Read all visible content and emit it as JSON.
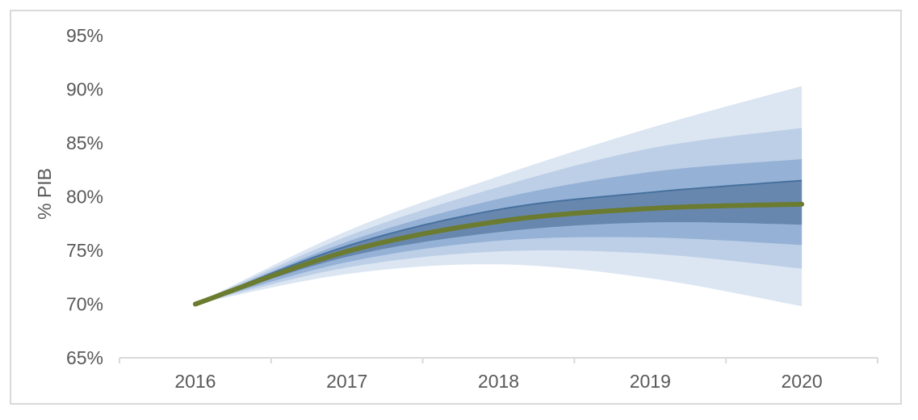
{
  "chart_data": {
    "type": "area",
    "subtype": "fan-chart",
    "title": "",
    "xlabel": "",
    "ylabel": "% PIB",
    "x": [
      2016,
      2017,
      2018,
      2019,
      2020
    ],
    "x_labels": [
      "2016",
      "2017",
      "2018",
      "2019",
      "2020"
    ],
    "y_tick_values": [
      95,
      90,
      85,
      80,
      75,
      70,
      65
    ],
    "y_tick_labels": [
      "95%",
      "90%",
      "85%",
      "80%",
      "75%",
      "70%",
      "65%"
    ],
    "ylim": [
      65,
      95
    ],
    "grid": false,
    "legend": "none",
    "center_line": {
      "name": "central-projection",
      "values": [
        70.0,
        74.9,
        77.7,
        78.9,
        79.3
      ],
      "color": "#6B7B2F",
      "width": 6
    },
    "bands": [
      {
        "name": "confidence-band-outer",
        "color": "#DCE6F2",
        "upper": [
          70.0,
          76.8,
          81.9,
          86.4,
          90.3
        ],
        "lower": [
          70.0,
          72.8,
          73.7,
          72.4,
          69.8
        ]
      },
      {
        "name": "confidence-band-mid-outer",
        "color": "#BDCFE7",
        "upper": [
          70.0,
          76.3,
          80.9,
          84.5,
          86.4
        ],
        "lower": [
          70.0,
          73.4,
          74.9,
          74.7,
          73.3
        ]
      },
      {
        "name": "confidence-band-mid-inner",
        "color": "#95B2D6",
        "upper": [
          70.0,
          75.8,
          79.8,
          82.3,
          83.5
        ],
        "lower": [
          70.0,
          73.9,
          75.9,
          76.2,
          75.5
        ]
      },
      {
        "name": "confidence-band-inner",
        "color": "#6887AE",
        "upper": [
          70.0,
          75.4,
          78.8,
          80.4,
          81.5
        ],
        "lower": [
          70.0,
          74.4,
          76.7,
          77.6,
          77.4
        ],
        "top_edge_color": "#47719F"
      }
    ],
    "colors": {
      "axis": "#D9D9D9",
      "frame": "#D9D9D9",
      "text": "#595959",
      "background": "#FFFFFF"
    }
  }
}
